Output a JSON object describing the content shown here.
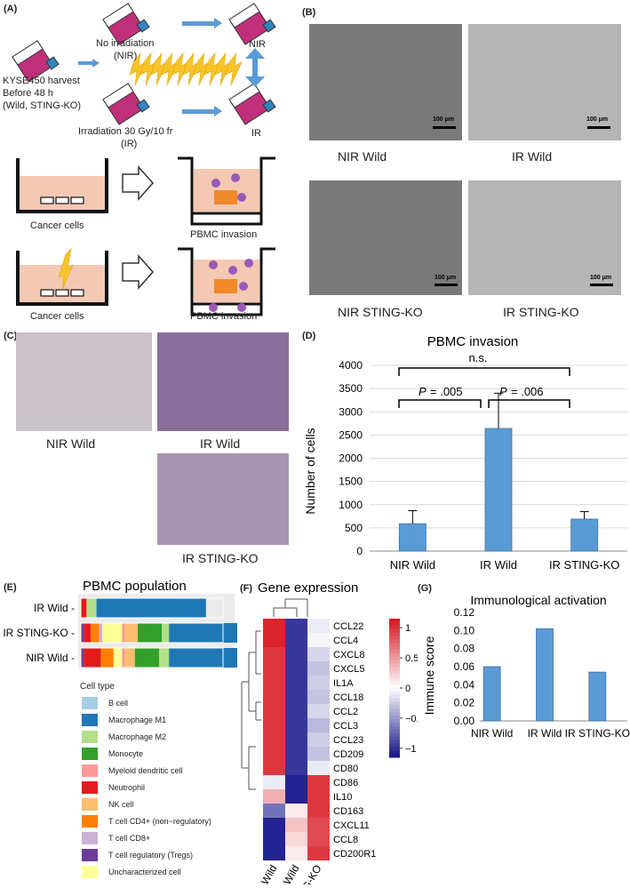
{
  "panels": {
    "A": "(A)",
    "B": "(B)",
    "C": "(C)",
    "D": "(D)",
    "E": "(E)",
    "F": "(F)",
    "G": "(G)"
  },
  "panelA": {
    "harvest": [
      "KYSE450 harvest",
      "Before 48 h",
      "(Wild, STING-KO)"
    ],
    "no_irr": [
      "No irradiation",
      "(NIR)"
    ],
    "nir": "NIR",
    "ir": "IR",
    "irradiation": [
      "Irradiation  30 Gy/10 fr",
      "(IR)"
    ],
    "cancer_cells_1": "Cancer cells",
    "cancer_cells_2": "Cancer cells",
    "pbmc_invasion_1": "PBMC invasion",
    "pbmc_invasion_2": "PBMC invasion"
  },
  "panelB": {
    "labels": [
      "NIR Wild",
      "IR Wild",
      "NIR STING-KO",
      "IR STING-KO"
    ],
    "scale": "100 μm"
  },
  "panelC": {
    "labels": [
      "NIR Wild",
      "IR Wild",
      "IR STING-KO"
    ]
  },
  "panelD": {
    "pvals": {
      "p1": "= .005",
      "p2": "= .006",
      "ns": "n.s.",
      "P": "P"
    }
  },
  "panelE": {
    "legend_title": "Cell type"
  },
  "colors": {
    "bar_blue": "#5b9bd5"
  },
  "chart_data": [
    {
      "type": "bar",
      "title": "PBMC invasion",
      "categories": [
        "NIR Wild",
        "IR Wild",
        "IR STING-KO"
      ],
      "values": [
        590,
        2640,
        690
      ],
      "errors": [
        280,
        760,
        160
      ],
      "ylabel": "Number of cells",
      "ylim": [
        0,
        4000
      ],
      "yticks": [
        "0",
        "500",
        "1000",
        "1500",
        "2000",
        "2500",
        "3000",
        "3500",
        "4000"
      ],
      "grid": true
    },
    {
      "type": "bar",
      "title": "PBMC population",
      "stacked": true,
      "categories": [
        "IR Wild",
        "IR STING-KO",
        "NIR Wild"
      ],
      "series": [
        {
          "name": "B cell",
          "color": "#a6cee3",
          "values": [
            0.0,
            0.0,
            0.0
          ]
        },
        {
          "name": "Macrophage M1",
          "color": "#1f78b4",
          "values": [
            0.77,
            0.48,
            0.48
          ]
        },
        {
          "name": "Macrophage M2",
          "color": "#b2df8a",
          "values": [
            0.07,
            0.05,
            0.07
          ]
        },
        {
          "name": "Monocyte",
          "color": "#33a02c",
          "values": [
            0.0,
            0.17,
            0.17
          ]
        },
        {
          "name": "Myeloid dendritic cell",
          "color": "#fb9a99",
          "values": [
            0.0,
            0.02,
            0.02
          ]
        },
        {
          "name": "Neutrophil",
          "color": "#e31a1c",
          "values": [
            0.04,
            0.05,
            0.12
          ]
        },
        {
          "name": "NK cell",
          "color": "#fdbf6f",
          "values": [
            0.0,
            0.09,
            0.07
          ]
        },
        {
          "name": "T cell CD4+ (non−regulatory)",
          "color": "#ff7f00",
          "values": [
            0.0,
            0.06,
            0.09
          ]
        },
        {
          "name": "T cell CD8+",
          "color": "#cab2d6",
          "values": [
            0.0,
            0.02,
            0.0
          ]
        },
        {
          "name": "T cell regulatory (Tregs)",
          "color": "#6a3d9a",
          "values": [
            0.0,
            0.02,
            0.02
          ]
        },
        {
          "name": "Uncharacterized cell",
          "color": "#ffff99",
          "values": [
            0.0,
            0.14,
            0.06
          ]
        }
      ]
    },
    {
      "type": "heatmap",
      "title": "Gene expression",
      "columns": [
        "IR Wild",
        "NIR Wild",
        "IR STING-KO"
      ],
      "rows": [
        "CCL22",
        "CCL4",
        "CXCL8",
        "CXCL5",
        "IL1A",
        "CCL18",
        "CCL2",
        "CCL3",
        "CCL23",
        "CD209",
        "CD80",
        "CD86",
        "IL10",
        "CD163",
        "CXCL11",
        "CCL8",
        "CD200R1"
      ],
      "values": [
        [
          1.1,
          -1.0,
          -0.1
        ],
        [
          1.1,
          -1.0,
          -0.05
        ],
        [
          1.0,
          -1.0,
          -0.2
        ],
        [
          1.0,
          -1.0,
          -0.3
        ],
        [
          1.0,
          -1.0,
          -0.25
        ],
        [
          1.0,
          -1.0,
          -0.3
        ],
        [
          1.0,
          -1.0,
          -0.2
        ],
        [
          1.0,
          -1.0,
          -0.35
        ],
        [
          1.0,
          -1.0,
          -0.25
        ],
        [
          1.0,
          -1.0,
          -0.3
        ],
        [
          1.0,
          -1.0,
          -0.1
        ],
        [
          -0.1,
          -1.1,
          1.0
        ],
        [
          0.4,
          -1.1,
          1.0
        ],
        [
          -0.7,
          0.1,
          1.0
        ],
        [
          -1.1,
          0.3,
          0.9
        ],
        [
          -1.1,
          0.2,
          0.9
        ],
        [
          -1.1,
          0.1,
          1.0
        ]
      ],
      "colorbar_ticks": [
        "1",
        "0.5",
        "0",
        "−0.5",
        "−1"
      ]
    },
    {
      "type": "bar",
      "title": "Immunological activation",
      "categories": [
        "NIR Wild",
        "IR Wild",
        "IR STING-KO"
      ],
      "values": [
        0.06,
        0.102,
        0.054
      ],
      "ylabel": "Immune score",
      "ylim": [
        0,
        0.12
      ],
      "yticks": [
        "0.00",
        "0.02",
        "0.04",
        "0.06",
        "0.08",
        "0.10",
        "0.12"
      ]
    }
  ]
}
